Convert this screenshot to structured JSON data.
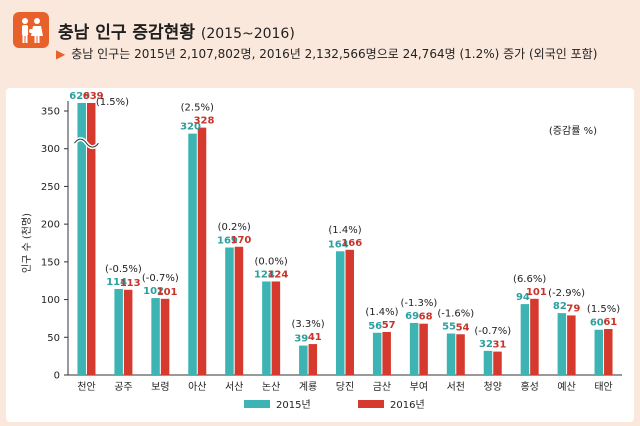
{
  "header": {
    "title": "충남 인구 증감현황",
    "title_years": "(2015~2016)",
    "summary": "충남 인구는 2015년 2,107,802명, 2016년 2,132,566명으로 24,764명 (1.2%) 증가 (외국인 포함)"
  },
  "colors": {
    "series_2015": "#3eb3b3",
    "series_2016": "#d63a2e",
    "label_2015": "#2b9f9f",
    "label_2016": "#c8332a",
    "icon_bg": "#e8612a"
  },
  "chart_data": {
    "type": "bar",
    "ylabel": "인구 수 (천명)",
    "unit_note": "(증감률 %)",
    "ylim": [
      0,
      350
    ],
    "yticks": [
      "0",
      "50",
      "100",
      "150",
      "200",
      "250",
      "300",
      "350"
    ],
    "axis_break": true,
    "categories": [
      "천안",
      "공주",
      "보령",
      "아산",
      "서산",
      "논산",
      "계룡",
      "당진",
      "금산",
      "부여",
      "서천",
      "청양",
      "홍성",
      "예산",
      "태안"
    ],
    "series": [
      {
        "name": "2015년",
        "values": [
          629,
          114,
          102,
          320,
          169,
          124,
          39,
          164,
          56,
          69,
          55,
          32,
          94,
          82,
          60
        ]
      },
      {
        "name": "2016년",
        "values": [
          639,
          113,
          101,
          328,
          170,
          124,
          41,
          166,
          57,
          68,
          54,
          31,
          101,
          79,
          61
        ]
      }
    ],
    "change_labels": [
      "(1.5%)",
      "(-0.5%)",
      "(-0.7%)",
      "(2.5%)",
      "(0.2%)",
      "(0.0%)",
      "(3.3%)",
      "(1.4%)",
      "(1.4%)",
      "(-1.3%)",
      "(-1.6%)",
      "(-0.7%)",
      "(6.6%)",
      "(-2.9%)",
      "(1.5%)"
    ],
    "legend": [
      "2015년",
      "2016년"
    ]
  }
}
